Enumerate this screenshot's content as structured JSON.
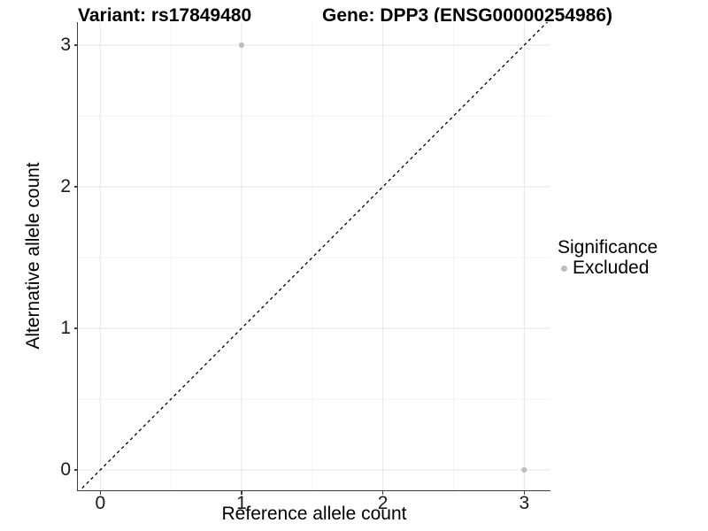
{
  "titles": {
    "variant": "Variant: rs17849480",
    "gene": "Gene: DPP3 (ENSG00000254986)"
  },
  "chart_data": {
    "type": "scatter",
    "title": "Variant: rs17849480    Gene: DPP3 (ENSG00000254986)",
    "xlabel": "Reference allele count",
    "ylabel": "Alternative allele count",
    "xlim": [
      -0.16,
      3.19
    ],
    "ylim": [
      -0.15,
      3.17
    ],
    "x_ticks": [
      0,
      1,
      2,
      3
    ],
    "y_ticks": [
      0,
      1,
      2,
      3
    ],
    "x_minor": [
      0.5,
      1.5,
      2.5
    ],
    "y_minor": [
      0.5,
      1.5,
      2.5
    ],
    "grid": "major and minor gridlines on white background",
    "reference_line": {
      "kind": "identity y = x",
      "style": "dashed",
      "color": "#000000"
    },
    "series": [
      {
        "name": "Excluded",
        "color": "#bebebe",
        "points": [
          {
            "x": 1,
            "y": 3
          },
          {
            "x": 3,
            "y": 0
          }
        ]
      }
    ],
    "legend": {
      "title": "Significance",
      "position": "right",
      "items": [
        {
          "label": "Excluded",
          "color": "#bebebe"
        }
      ]
    }
  },
  "colors": {
    "background": "#ffffff",
    "grid_major": "#e6e6e6",
    "grid_minor": "#f3f3f3",
    "axis_line": "#3d3d3d",
    "tick_mark": "#3d3d3d",
    "tick_text": "#1a1a1a",
    "point": "#bebebe"
  }
}
